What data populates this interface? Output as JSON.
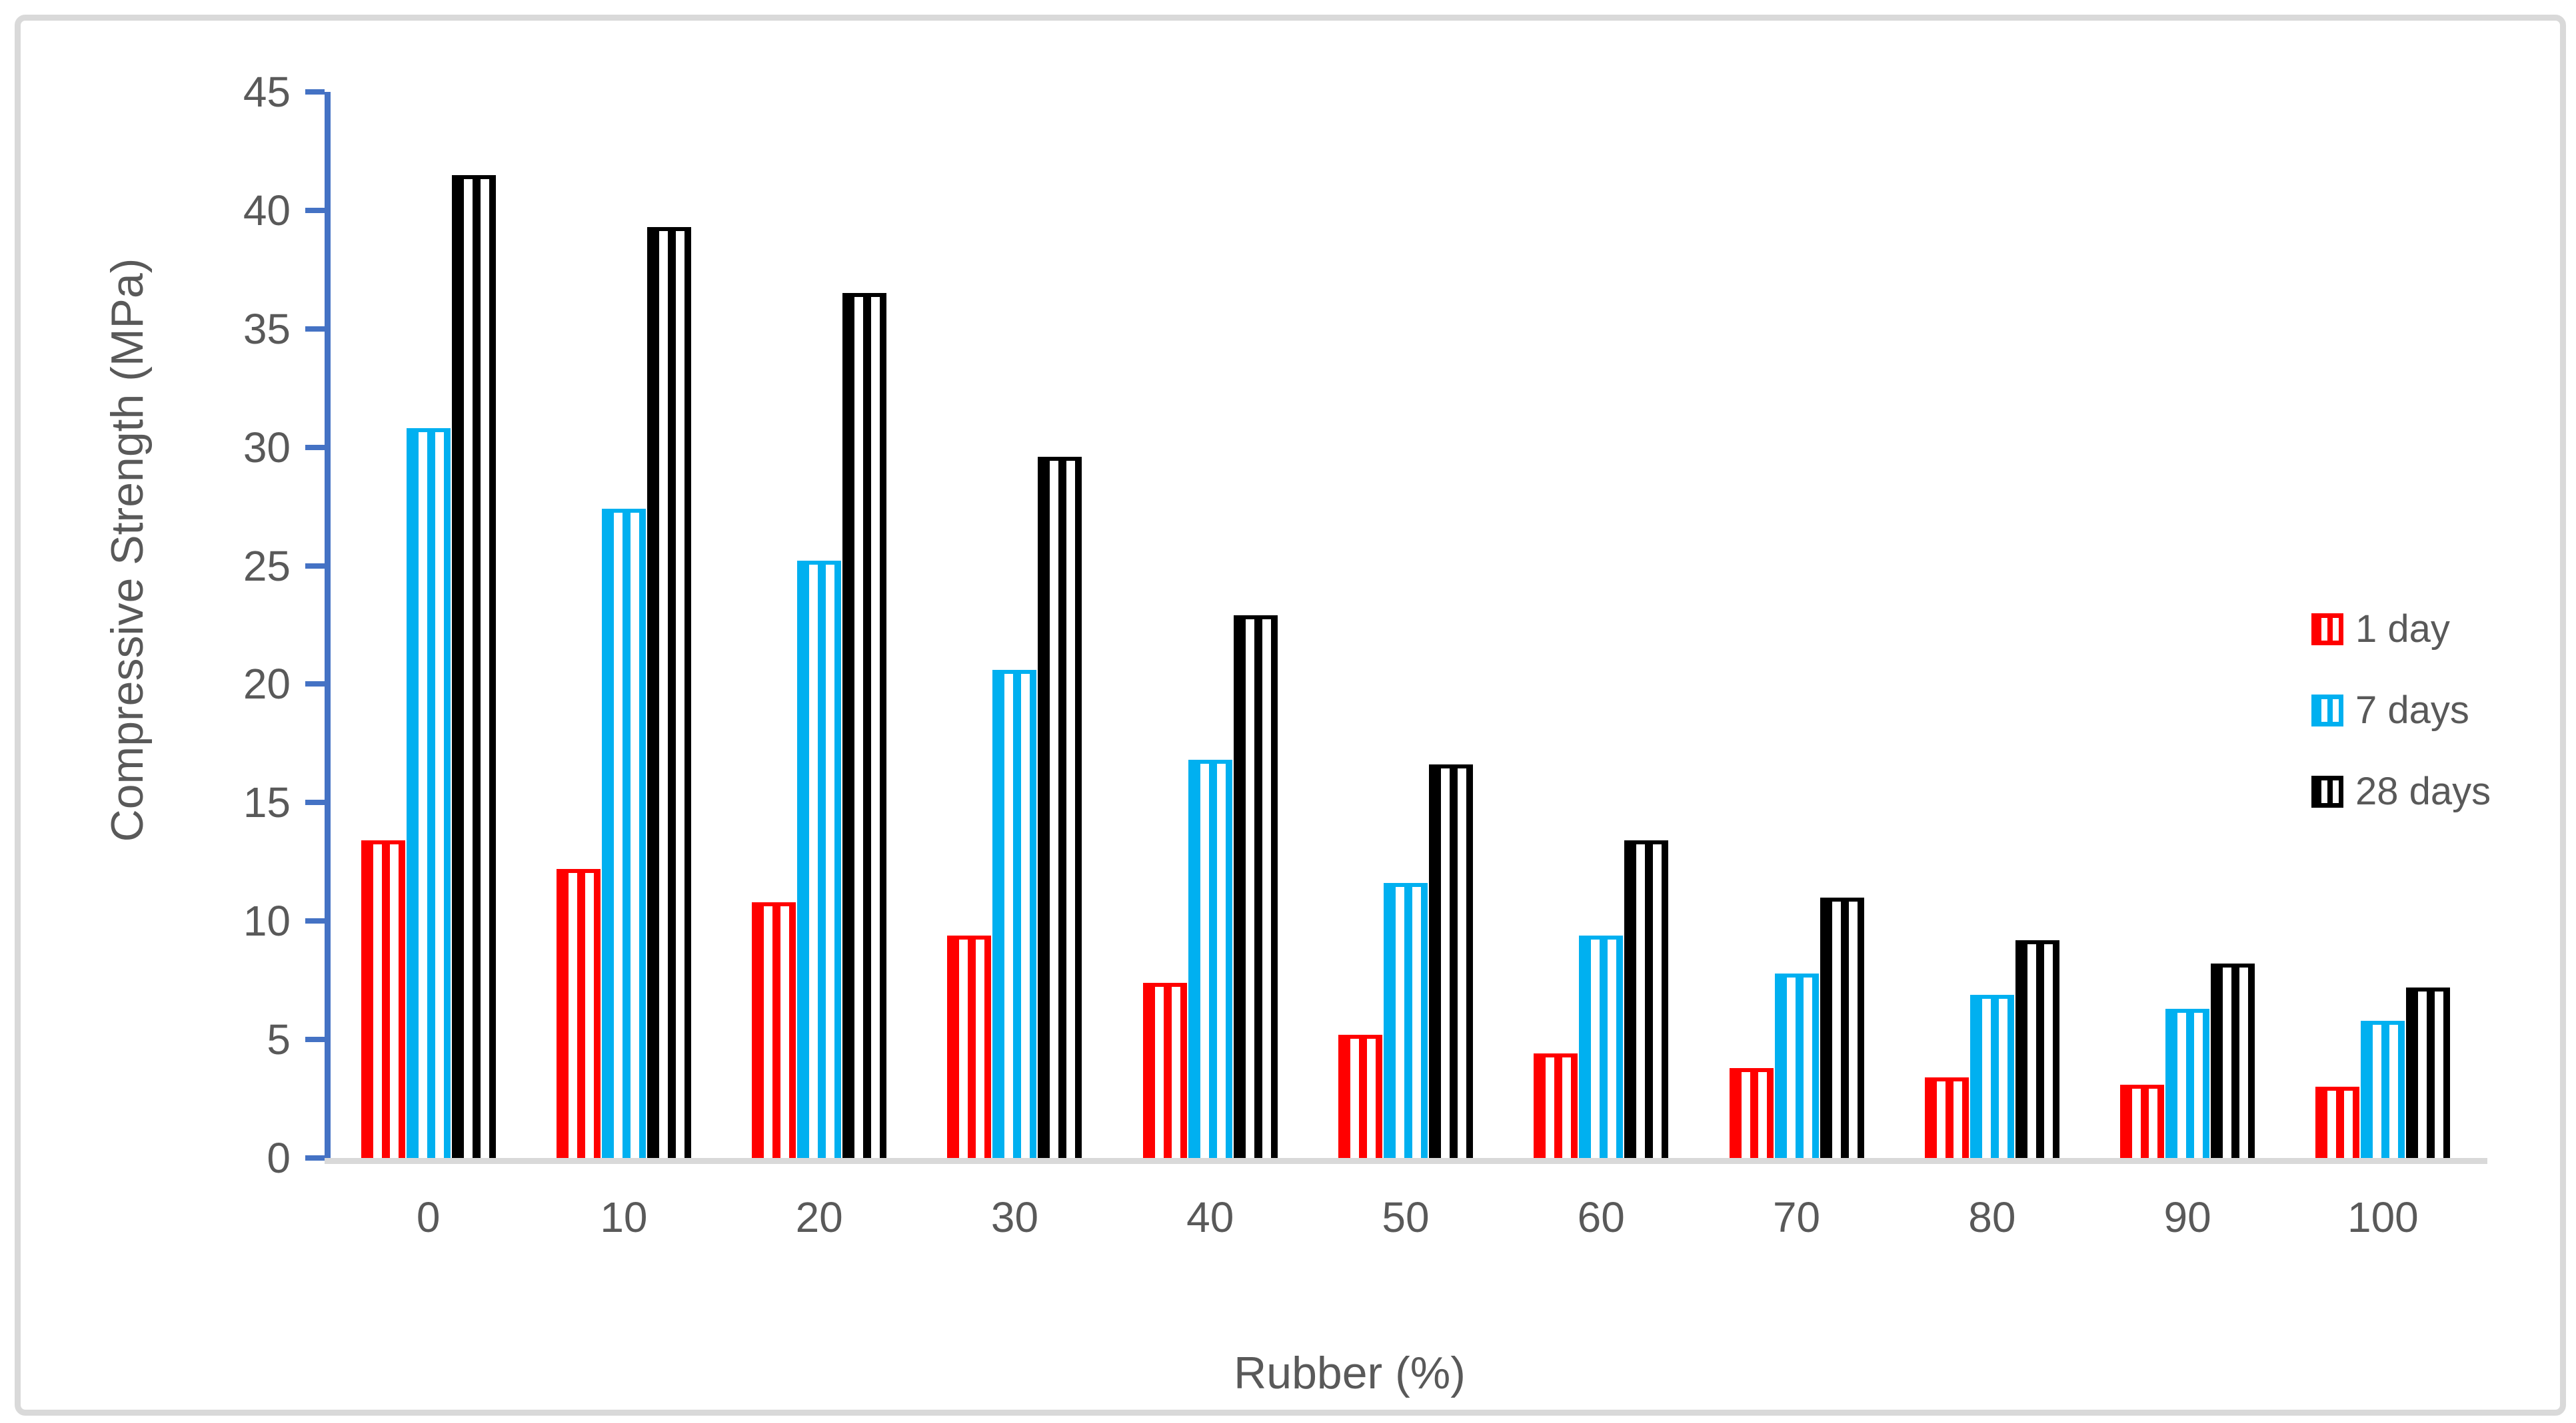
{
  "chart_data": {
    "type": "bar",
    "title": "",
    "xlabel": "Rubber (%)",
    "ylabel": "Compressive Strength (MPa)",
    "categories": [
      "0",
      "10",
      "20",
      "30",
      "40",
      "50",
      "60",
      "70",
      "80",
      "90",
      "100"
    ],
    "series": [
      {
        "name": "1 day",
        "color": "#ff0000",
        "values": [
          13.4,
          12.2,
          10.8,
          9.4,
          7.4,
          5.2,
          4.4,
          3.8,
          3.4,
          3.1,
          3.0
        ]
      },
      {
        "name": "7 days",
        "color": "#00b0f0",
        "values": [
          30.8,
          27.4,
          25.2,
          20.6,
          16.8,
          11.6,
          9.4,
          7.8,
          6.9,
          6.3,
          5.8
        ]
      },
      {
        "name": "28 days",
        "color": "#000000",
        "values": [
          41.5,
          39.3,
          36.5,
          29.6,
          22.9,
          16.6,
          13.4,
          11.0,
          9.2,
          8.2,
          7.2
        ]
      }
    ],
    "ylim": [
      0,
      45
    ],
    "yticks": [
      0,
      5,
      10,
      15,
      20,
      25,
      30,
      35,
      40,
      45
    ],
    "legend_position": "right",
    "grid": false,
    "bar_pattern": "vertical-stripes"
  },
  "colors": {
    "axis_line": "#4472c4",
    "baseline": "#d9d9d9",
    "frame_border": "#d9d9d9",
    "text": "#595959",
    "stripe": "#ffffff",
    "background": "#ffffff"
  }
}
